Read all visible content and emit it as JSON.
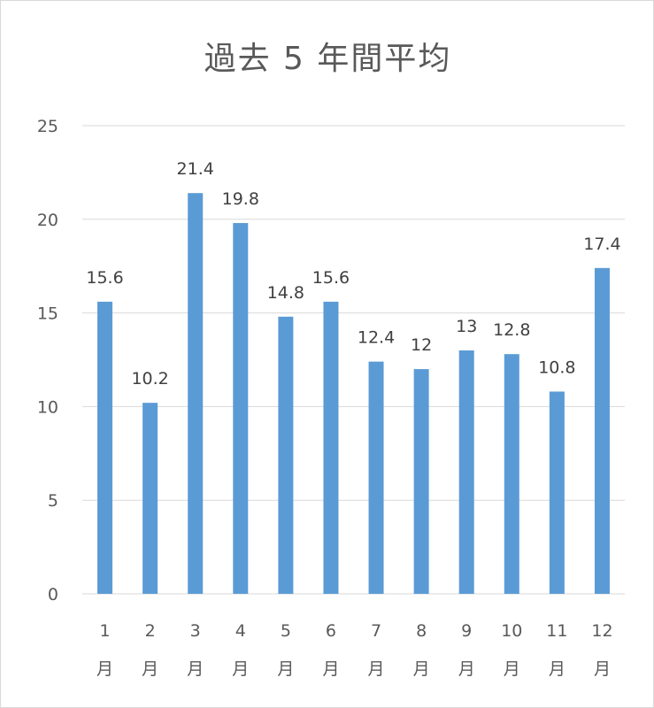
{
  "chart_data": {
    "type": "bar",
    "title": "過去 5 年間平均",
    "categories": [
      "1月",
      "2月",
      "3月",
      "4月",
      "5月",
      "6月",
      "7月",
      "8月",
      "9月",
      "10月",
      "11月",
      "12月"
    ],
    "category_lines": [
      [
        "1",
        "月"
      ],
      [
        "2",
        "月"
      ],
      [
        "3",
        "月"
      ],
      [
        "4",
        "月"
      ],
      [
        "5",
        "月"
      ],
      [
        "6",
        "月"
      ],
      [
        "7",
        "月"
      ],
      [
        "8",
        "月"
      ],
      [
        "9",
        "月"
      ],
      [
        "10",
        "月"
      ],
      [
        "11",
        "月"
      ],
      [
        "12",
        "月"
      ]
    ],
    "values": [
      15.6,
      10.2,
      21.4,
      19.8,
      14.8,
      15.6,
      12.4,
      12,
      13,
      12.8,
      10.8,
      17.4
    ],
    "value_labels": [
      "15.6",
      "10.2",
      "21.4",
      "19.8",
      "14.8",
      "15.6",
      "12.4",
      "12",
      "13",
      "12.8",
      "10.8",
      "17.4"
    ],
    "ylim": [
      0,
      25
    ],
    "yticks": [
      0,
      5,
      10,
      15,
      20,
      25
    ],
    "grid": true,
    "legend": "none",
    "colors": {
      "bar": "#5b9bd5",
      "grid": "#d9d9d9",
      "text": "#595959"
    }
  }
}
